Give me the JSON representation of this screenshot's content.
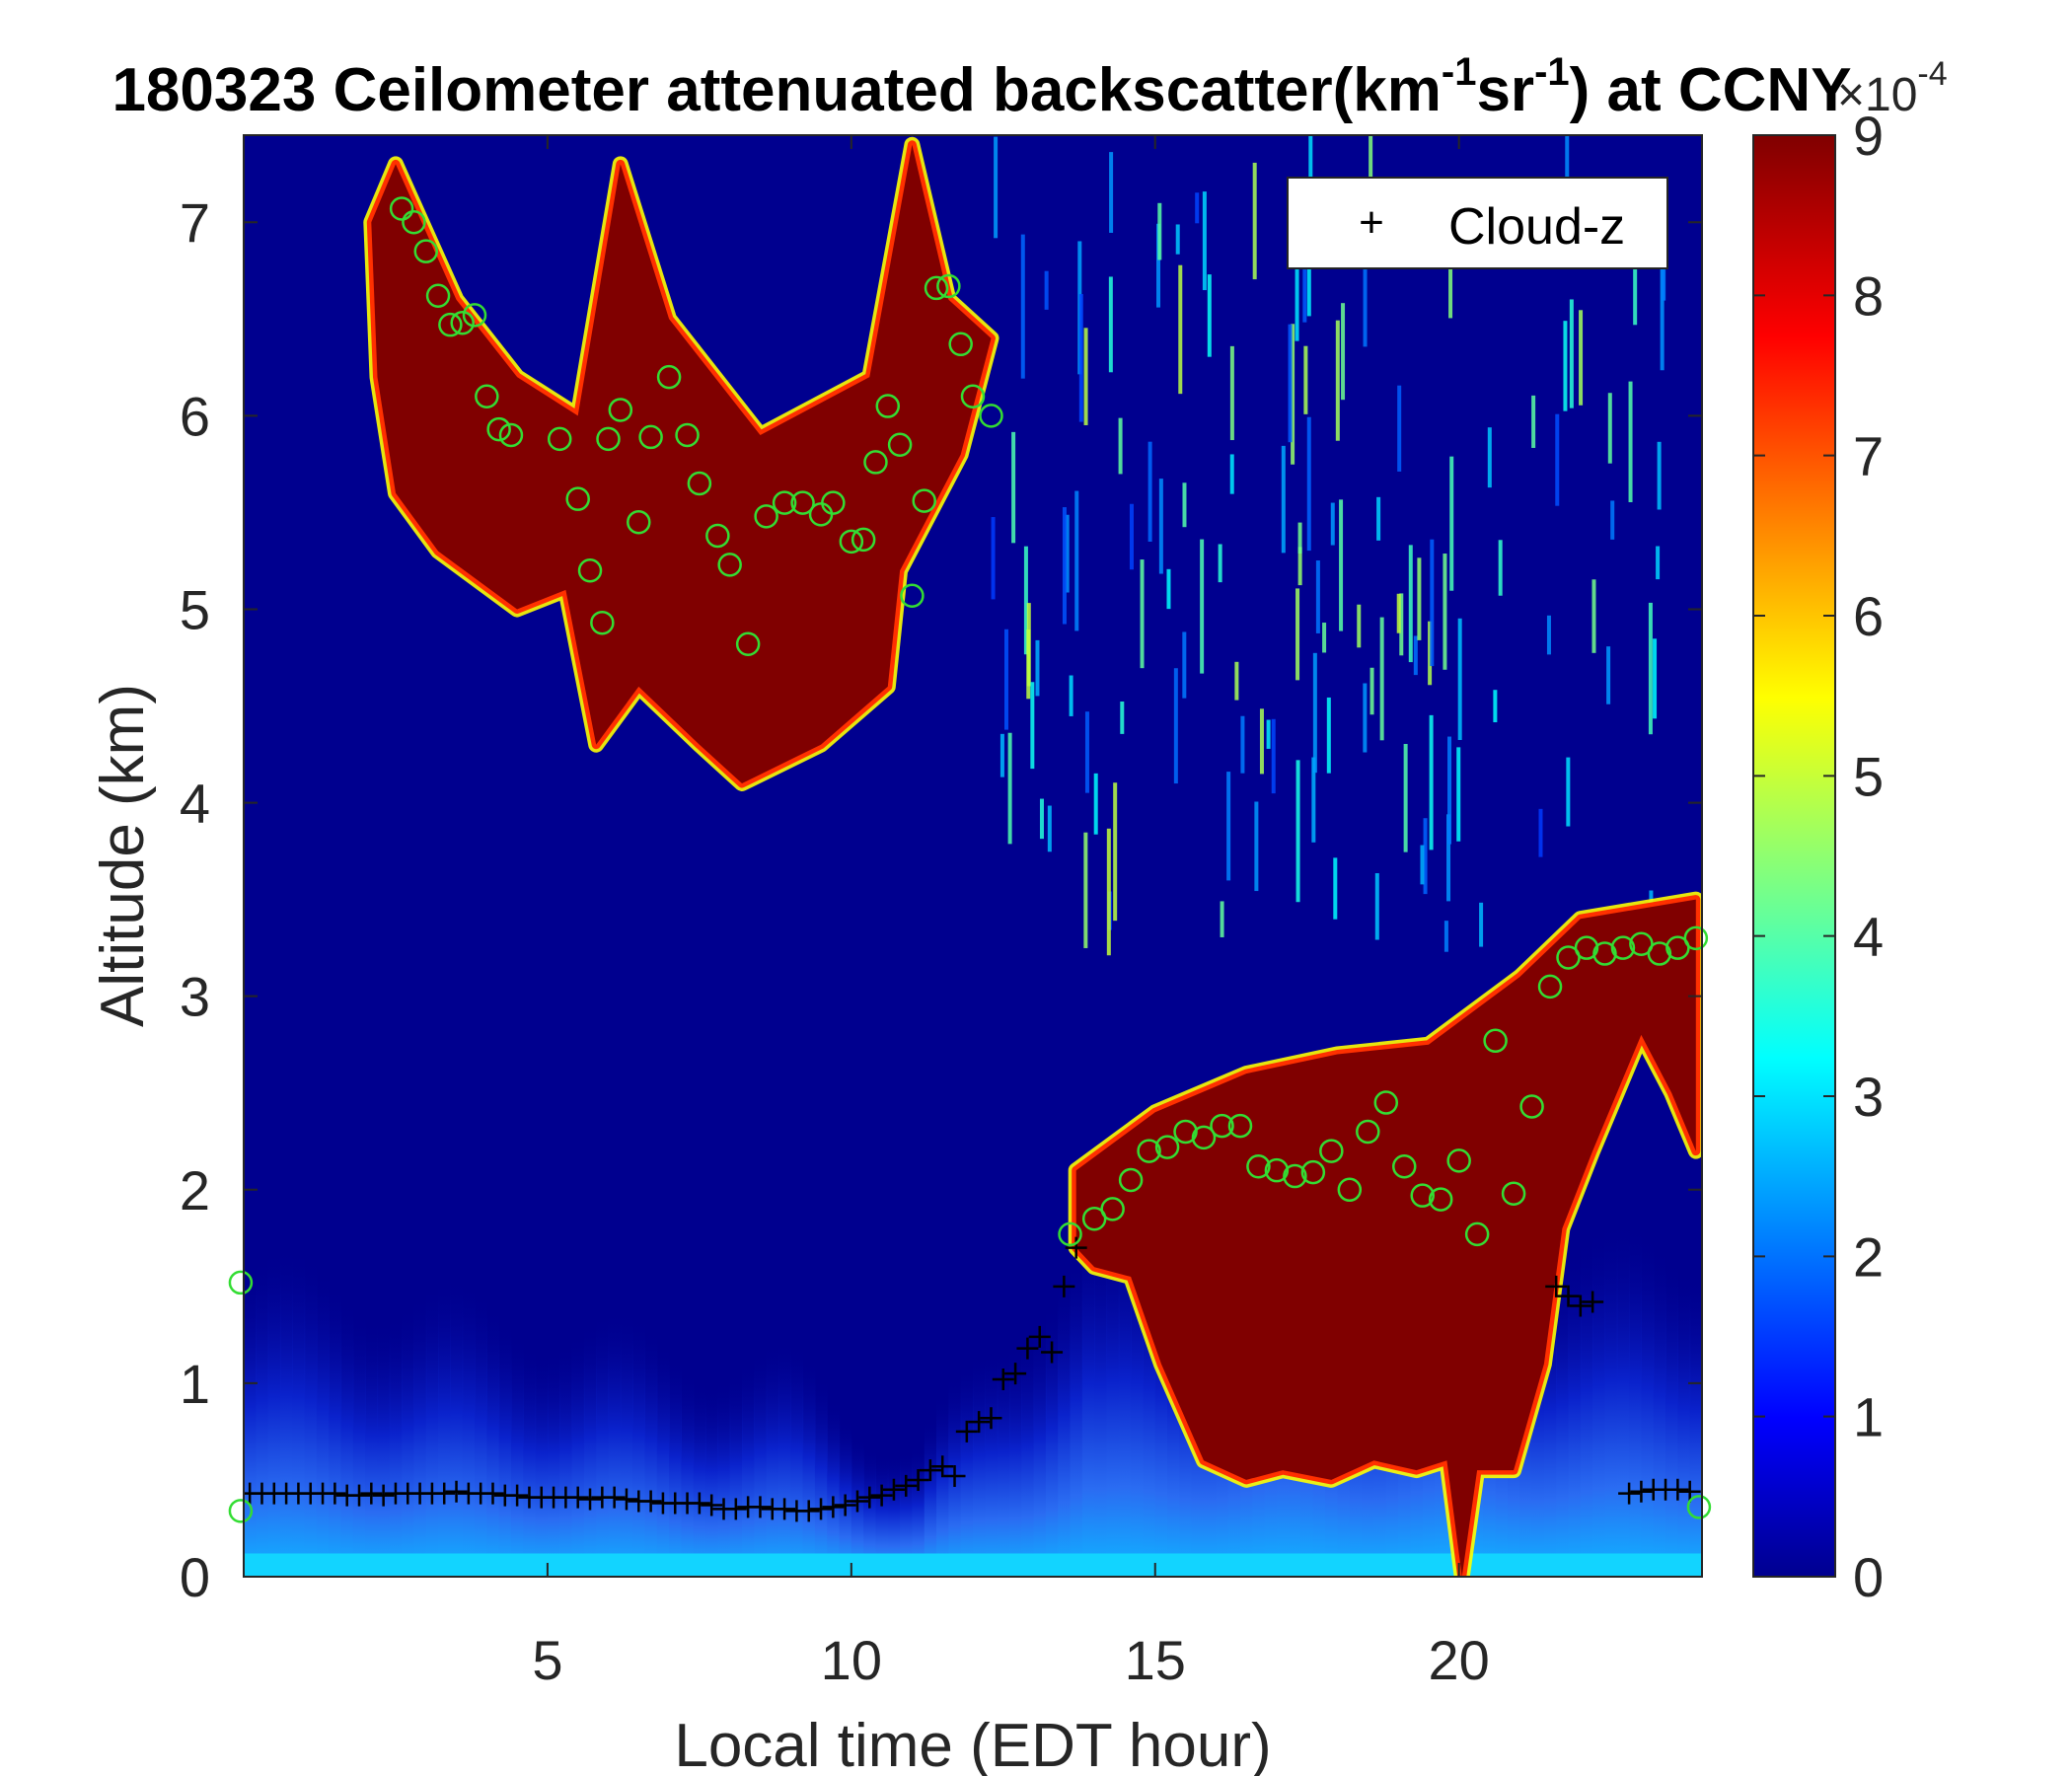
{
  "chart_data": {
    "type": "heatmap",
    "title": {
      "prefix": "180323 Ceilometer attenuated backscatter(km",
      "sup1": "-1",
      "mid": "sr",
      "sup2": "-1",
      "suffix": ") at CCNY"
    },
    "xlabel": "Local time (EDT hour)",
    "ylabel": "Altitude (km)",
    "xlim": [
      0,
      24
    ],
    "ylim": [
      0,
      7.45
    ],
    "xticks": [
      5,
      10,
      15,
      20
    ],
    "yticks": [
      0,
      1,
      2,
      3,
      4,
      5,
      6,
      7
    ],
    "colorbar": {
      "min": 0,
      "max": 9,
      "ticks": [
        0,
        1,
        2,
        3,
        4,
        5,
        6,
        7,
        8,
        9
      ],
      "exponent_base": "×10",
      "exponent": "-4",
      "colormap": "jet",
      "colors": [
        "#00008f",
        "#0000ff",
        "#00ffff",
        "#ffff00",
        "#ff0000",
        "#800000"
      ]
    },
    "grid": false,
    "legend": {
      "placement": "top-right",
      "entries": [
        {
          "marker": "+",
          "label": "Cloud-z"
        }
      ]
    },
    "regions": [
      {
        "name": "upper cloud layer",
        "value": 9,
        "polygon": [
          [
            2.1,
            7.0
          ],
          [
            2.5,
            7.3
          ],
          [
            3.5,
            6.6
          ],
          [
            4.5,
            6.2
          ],
          [
            5.5,
            6.0
          ],
          [
            6.2,
            7.3
          ],
          [
            7.0,
            6.5
          ],
          [
            8.5,
            5.9
          ],
          [
            10.3,
            6.2
          ],
          [
            11.0,
            7.4
          ],
          [
            11.6,
            6.6
          ],
          [
            12.3,
            6.4
          ],
          [
            11.8,
            5.8
          ],
          [
            10.8,
            5.2
          ],
          [
            10.6,
            4.6
          ],
          [
            9.5,
            4.3
          ],
          [
            8.2,
            4.1
          ],
          [
            7.5,
            4.3
          ],
          [
            6.5,
            4.6
          ],
          [
            5.8,
            4.3
          ],
          [
            5.3,
            5.1
          ],
          [
            4.5,
            5.0
          ],
          [
            3.2,
            5.3
          ],
          [
            2.5,
            5.6
          ],
          [
            2.2,
            6.2
          ]
        ]
      },
      {
        "name": "lower cloud layer",
        "value": 9,
        "polygon": [
          [
            13.7,
            2.1
          ],
          [
            15.0,
            2.4
          ],
          [
            16.5,
            2.6
          ],
          [
            18.0,
            2.7
          ],
          [
            19.5,
            2.75
          ],
          [
            21.0,
            3.1
          ],
          [
            22.0,
            3.4
          ],
          [
            23.9,
            3.5
          ],
          [
            23.9,
            2.2
          ],
          [
            23.5,
            2.5
          ],
          [
            23.0,
            2.8
          ],
          [
            22.2,
            2.2
          ],
          [
            21.7,
            1.8
          ],
          [
            21.4,
            1.1
          ],
          [
            20.9,
            0.55
          ],
          [
            20.3,
            0.55
          ],
          [
            20.05,
            0.0
          ],
          [
            19.8,
            0.6
          ],
          [
            19.3,
            0.55
          ],
          [
            18.6,
            0.6
          ],
          [
            17.9,
            0.5
          ],
          [
            17.1,
            0.55
          ],
          [
            16.5,
            0.5
          ],
          [
            15.8,
            0.6
          ],
          [
            15.1,
            1.1
          ],
          [
            14.6,
            1.55
          ],
          [
            14.0,
            1.6
          ],
          [
            13.7,
            1.7
          ]
        ]
      }
    ],
    "series": [
      {
        "name": "Cloud-z",
        "marker": "+",
        "color": "#000000",
        "x": [
          0.1,
          0.3,
          0.5,
          0.7,
          0.9,
          1.1,
          1.3,
          1.5,
          1.7,
          1.9,
          2.1,
          2.3,
          2.5,
          2.7,
          2.9,
          3.1,
          3.3,
          3.5,
          3.7,
          3.9,
          4.1,
          4.3,
          4.5,
          4.7,
          4.9,
          5.1,
          5.3,
          5.5,
          5.7,
          5.9,
          6.1,
          6.3,
          6.5,
          6.7,
          6.9,
          7.1,
          7.3,
          7.5,
          7.7,
          7.9,
          8.1,
          8.3,
          8.5,
          8.7,
          8.9,
          9.1,
          9.3,
          9.5,
          9.7,
          9.9,
          10.1,
          10.3,
          10.5,
          10.7,
          10.9,
          11.1,
          11.3,
          11.5,
          11.7,
          11.9,
          12.1,
          12.3,
          12.5,
          12.7,
          12.9,
          13.1,
          13.3,
          13.5,
          13.7,
          21.6,
          21.8,
          22.0,
          22.2,
          22.8,
          23.0,
          23.2,
          23.4,
          23.6,
          23.8
        ],
        "y": [
          0.43,
          0.43,
          0.43,
          0.43,
          0.43,
          0.43,
          0.43,
          0.43,
          0.42,
          0.42,
          0.43,
          0.42,
          0.43,
          0.43,
          0.43,
          0.43,
          0.43,
          0.44,
          0.43,
          0.43,
          0.43,
          0.42,
          0.42,
          0.41,
          0.41,
          0.41,
          0.41,
          0.41,
          0.4,
          0.41,
          0.41,
          0.4,
          0.39,
          0.39,
          0.38,
          0.38,
          0.38,
          0.38,
          0.37,
          0.35,
          0.35,
          0.36,
          0.36,
          0.35,
          0.35,
          0.34,
          0.34,
          0.35,
          0.36,
          0.37,
          0.39,
          0.41,
          0.42,
          0.45,
          0.47,
          0.5,
          0.55,
          0.57,
          0.52,
          0.75,
          0.8,
          0.82,
          1.02,
          1.05,
          1.18,
          1.24,
          1.16,
          1.5,
          1.7,
          1.5,
          1.45,
          1.4,
          1.42,
          0.43,
          0.44,
          0.45,
          0.45,
          0.45,
          0.44
        ]
      },
      {
        "name": "",
        "marker": "o",
        "color": "#33dd33",
        "x": [
          2.6,
          2.8,
          3.0,
          3.2,
          3.4,
          3.6,
          3.8,
          4.0,
          4.2,
          4.4,
          5.2,
          5.5,
          5.7,
          5.9,
          6.0,
          6.2,
          6.5,
          6.7,
          7.0,
          7.3,
          7.5,
          7.8,
          8.0,
          8.3,
          8.6,
          8.9,
          9.2,
          9.5,
          9.7,
          10.0,
          10.2,
          10.4,
          10.6,
          10.8,
          11.0,
          11.2,
          11.4,
          11.6,
          11.8,
          12.0,
          12.3,
          13.6,
          14.0,
          14.3,
          14.6,
          14.9,
          15.2,
          15.5,
          15.8,
          16.1,
          16.4,
          16.7,
          17.0,
          17.3,
          17.6,
          17.9,
          18.2,
          18.5,
          18.8,
          19.1,
          19.4,
          19.7,
          20.0,
          20.3,
          20.6,
          20.9,
          21.2,
          21.5,
          21.8,
          22.1,
          22.4,
          22.7,
          23.0,
          23.3,
          23.6,
          23.9,
          -0.05,
          -0.05,
          23.95
        ],
        "y": [
          7.07,
          7.0,
          6.85,
          6.62,
          6.47,
          6.48,
          6.52,
          6.1,
          5.93,
          5.9,
          5.88,
          5.57,
          5.2,
          4.93,
          5.88,
          6.03,
          5.45,
          5.89,
          6.2,
          5.9,
          5.65,
          5.38,
          5.23,
          4.82,
          5.48,
          5.55,
          5.55,
          5.49,
          5.55,
          5.35,
          5.36,
          5.76,
          6.05,
          5.85,
          5.07,
          5.56,
          6.66,
          6.67,
          6.37,
          6.1,
          6.0,
          1.77,
          1.85,
          1.9,
          2.05,
          2.2,
          2.22,
          2.3,
          2.27,
          2.33,
          2.33,
          2.12,
          2.1,
          2.07,
          2.09,
          2.2,
          2.0,
          2.3,
          2.45,
          2.12,
          1.97,
          1.95,
          2.15,
          1.77,
          2.77,
          1.98,
          2.43,
          3.05,
          3.2,
          3.25,
          3.22,
          3.25,
          3.27,
          3.22,
          3.25,
          3.3,
          1.52,
          0.34,
          0.36
        ]
      }
    ]
  }
}
